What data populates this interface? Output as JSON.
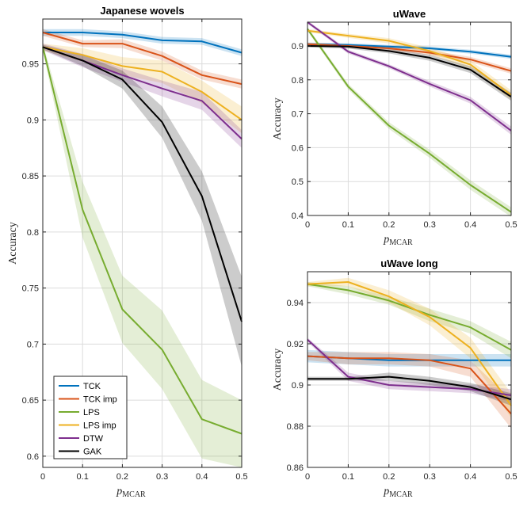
{
  "legend": {
    "entries": [
      {
        "name": "TCK",
        "color": "#0072BD"
      },
      {
        "name": "TCK imp",
        "color": "#D95319"
      },
      {
        "name": "LPS",
        "color": "#77AC30"
      },
      {
        "name": "LPS imp",
        "color": "#EDB120"
      },
      {
        "name": "DTW",
        "color": "#7E2F8E"
      },
      {
        "name": "GAK",
        "color": "#000000"
      }
    ]
  },
  "chart_data": [
    {
      "type": "line",
      "title": "Japanese wovels",
      "xlabel": "p_MCAR",
      "xlabel_main": "p",
      "xlabel_sub": "MCAR",
      "ylabel": "Accuracy",
      "x": [
        0,
        0.1,
        0.2,
        0.3,
        0.4,
        0.5
      ],
      "xlim": [
        0,
        0.5
      ],
      "ylim": [
        0.59,
        0.99
      ],
      "xticks": [
        "0",
        "0.1",
        "0.2",
        "0.3",
        "0.4",
        "0.5"
      ],
      "xtick_values": [
        0,
        0.1,
        0.2,
        0.3,
        0.4,
        0.5
      ],
      "yticks": [
        "0.6",
        "0.65",
        "0.7",
        "0.75",
        "0.8",
        "0.85",
        "0.9",
        "0.95"
      ],
      "ytick_values": [
        0.6,
        0.65,
        0.7,
        0.75,
        0.8,
        0.85,
        0.9,
        0.95
      ],
      "grid": true,
      "series": [
        {
          "name": "TCK",
          "color": "#0072BD",
          "values": [
            0.978,
            0.978,
            0.976,
            0.971,
            0.97,
            0.96
          ],
          "band": [
            0.003,
            0.003,
            0.003,
            0.003,
            0.003,
            0.003
          ]
        },
        {
          "name": "TCK imp",
          "color": "#D95319",
          "values": [
            0.978,
            0.968,
            0.968,
            0.957,
            0.94,
            0.932
          ],
          "band": [
            0.003,
            0.003,
            0.004,
            0.004,
            0.004,
            0.004
          ]
        },
        {
          "name": "LPS",
          "color": "#77AC30",
          "values": [
            0.965,
            0.82,
            0.731,
            0.695,
            0.633,
            0.62
          ],
          "band": [
            0.003,
            0.025,
            0.03,
            0.035,
            0.035,
            0.03
          ]
        },
        {
          "name": "LPS imp",
          "color": "#EDB120",
          "values": [
            0.965,
            0.958,
            0.948,
            0.943,
            0.925,
            0.9
          ],
          "band": [
            0.003,
            0.006,
            0.008,
            0.01,
            0.01,
            0.012
          ]
        },
        {
          "name": "DTW",
          "color": "#7E2F8E",
          "values": [
            0.965,
            0.953,
            0.94,
            0.928,
            0.917,
            0.883
          ],
          "band": [
            0.003,
            0.006,
            0.006,
            0.007,
            0.008,
            0.008
          ]
        },
        {
          "name": "GAK",
          "color": "#000000",
          "values": [
            0.965,
            0.953,
            0.936,
            0.898,
            0.832,
            0.72
          ],
          "band": [
            0.002,
            0.005,
            0.008,
            0.014,
            0.022,
            0.04
          ]
        }
      ]
    },
    {
      "type": "line",
      "title": "uWave",
      "xlabel": "p_MCAR",
      "xlabel_main": "p",
      "xlabel_sub": "MCAR",
      "ylabel": "Accuracy",
      "x": [
        0,
        0.1,
        0.2,
        0.3,
        0.4,
        0.5
      ],
      "xlim": [
        0,
        0.5
      ],
      "ylim": [
        0.4,
        0.97
      ],
      "xticks": [
        "0",
        "0.1",
        "0.2",
        "0.3",
        "0.4",
        "0.5"
      ],
      "xtick_values": [
        0,
        0.1,
        0.2,
        0.3,
        0.4,
        0.5
      ],
      "yticks": [
        "0.4",
        "0.5",
        "0.6",
        "0.7",
        "0.8",
        "0.9"
      ],
      "ytick_values": [
        0.4,
        0.5,
        0.6,
        0.7,
        0.8,
        0.9
      ],
      "grid": true,
      "series": [
        {
          "name": "TCK",
          "color": "#0072BD",
          "values": [
            0.905,
            0.903,
            0.898,
            0.893,
            0.883,
            0.868
          ],
          "band": [
            0.005,
            0.005,
            0.005,
            0.005,
            0.006,
            0.006
          ]
        },
        {
          "name": "TCK imp",
          "color": "#D95319",
          "values": [
            0.905,
            0.9,
            0.893,
            0.88,
            0.86,
            0.826
          ],
          "band": [
            0.005,
            0.005,
            0.006,
            0.007,
            0.008,
            0.008
          ]
        },
        {
          "name": "LPS",
          "color": "#77AC30",
          "values": [
            0.95,
            0.78,
            0.665,
            0.582,
            0.49,
            0.41
          ],
          "band": [
            0.006,
            0.008,
            0.01,
            0.012,
            0.014,
            0.014
          ]
        },
        {
          "name": "LPS imp",
          "color": "#EDB120",
          "values": [
            0.945,
            0.93,
            0.915,
            0.885,
            0.845,
            0.755
          ],
          "band": [
            0.005,
            0.006,
            0.008,
            0.01,
            0.012,
            0.014
          ]
        },
        {
          "name": "DTW",
          "color": "#7E2F8E",
          "values": [
            0.97,
            0.883,
            0.84,
            0.788,
            0.74,
            0.65
          ],
          "band": [
            0.005,
            0.006,
            0.006,
            0.008,
            0.01,
            0.012
          ]
        },
        {
          "name": "GAK",
          "color": "#000000",
          "values": [
            0.9,
            0.898,
            0.885,
            0.865,
            0.83,
            0.75
          ],
          "band": [
            0.004,
            0.006,
            0.007,
            0.009,
            0.01,
            0.012
          ]
        }
      ]
    },
    {
      "type": "line",
      "title": "uWave long",
      "xlabel": "p_MCAR",
      "xlabel_main": "p",
      "xlabel_sub": "MCAR",
      "ylabel": "Accuracy",
      "x": [
        0,
        0.1,
        0.2,
        0.3,
        0.4,
        0.5
      ],
      "xlim": [
        0,
        0.5
      ],
      "ylim": [
        0.86,
        0.955
      ],
      "xticks": [
        "0",
        "0.1",
        "0.2",
        "0.3",
        "0.4",
        "0.5"
      ],
      "xtick_values": [
        0,
        0.1,
        0.2,
        0.3,
        0.4,
        0.5
      ],
      "yticks": [
        "0.86",
        "0.88",
        "0.9",
        "0.92",
        "0.94"
      ],
      "ytick_values": [
        0.86,
        0.88,
        0.9,
        0.92,
        0.94
      ],
      "grid": true,
      "series": [
        {
          "name": "TCK",
          "color": "#0072BD",
          "values": [
            0.914,
            0.913,
            0.912,
            0.912,
            0.912,
            0.912
          ],
          "band": [
            0.003,
            0.003,
            0.003,
            0.003,
            0.003,
            0.003
          ]
        },
        {
          "name": "TCK imp",
          "color": "#D95319",
          "values": [
            0.914,
            0.913,
            0.913,
            0.912,
            0.908,
            0.886
          ],
          "band": [
            0.002,
            0.003,
            0.003,
            0.003,
            0.004,
            0.007
          ]
        },
        {
          "name": "LPS",
          "color": "#77AC30",
          "values": [
            0.949,
            0.946,
            0.941,
            0.934,
            0.928,
            0.917
          ],
          "band": [
            0.001,
            0.002,
            0.002,
            0.003,
            0.003,
            0.004
          ]
        },
        {
          "name": "LPS imp",
          "color": "#EDB120",
          "values": [
            0.949,
            0.95,
            0.943,
            0.933,
            0.918,
            0.89
          ],
          "band": [
            0.001,
            0.002,
            0.003,
            0.004,
            0.005,
            0.006
          ]
        },
        {
          "name": "DTW",
          "color": "#7E2F8E",
          "values": [
            0.922,
            0.904,
            0.9,
            0.899,
            0.898,
            0.895
          ],
          "band": [
            0.001,
            0.002,
            0.002,
            0.002,
            0.002,
            0.003
          ]
        },
        {
          "name": "GAK",
          "color": "#000000",
          "values": [
            0.903,
            0.903,
            0.904,
            0.902,
            0.899,
            0.893
          ],
          "band": [
            0.001,
            0.001,
            0.002,
            0.002,
            0.002,
            0.003
          ]
        }
      ]
    }
  ]
}
